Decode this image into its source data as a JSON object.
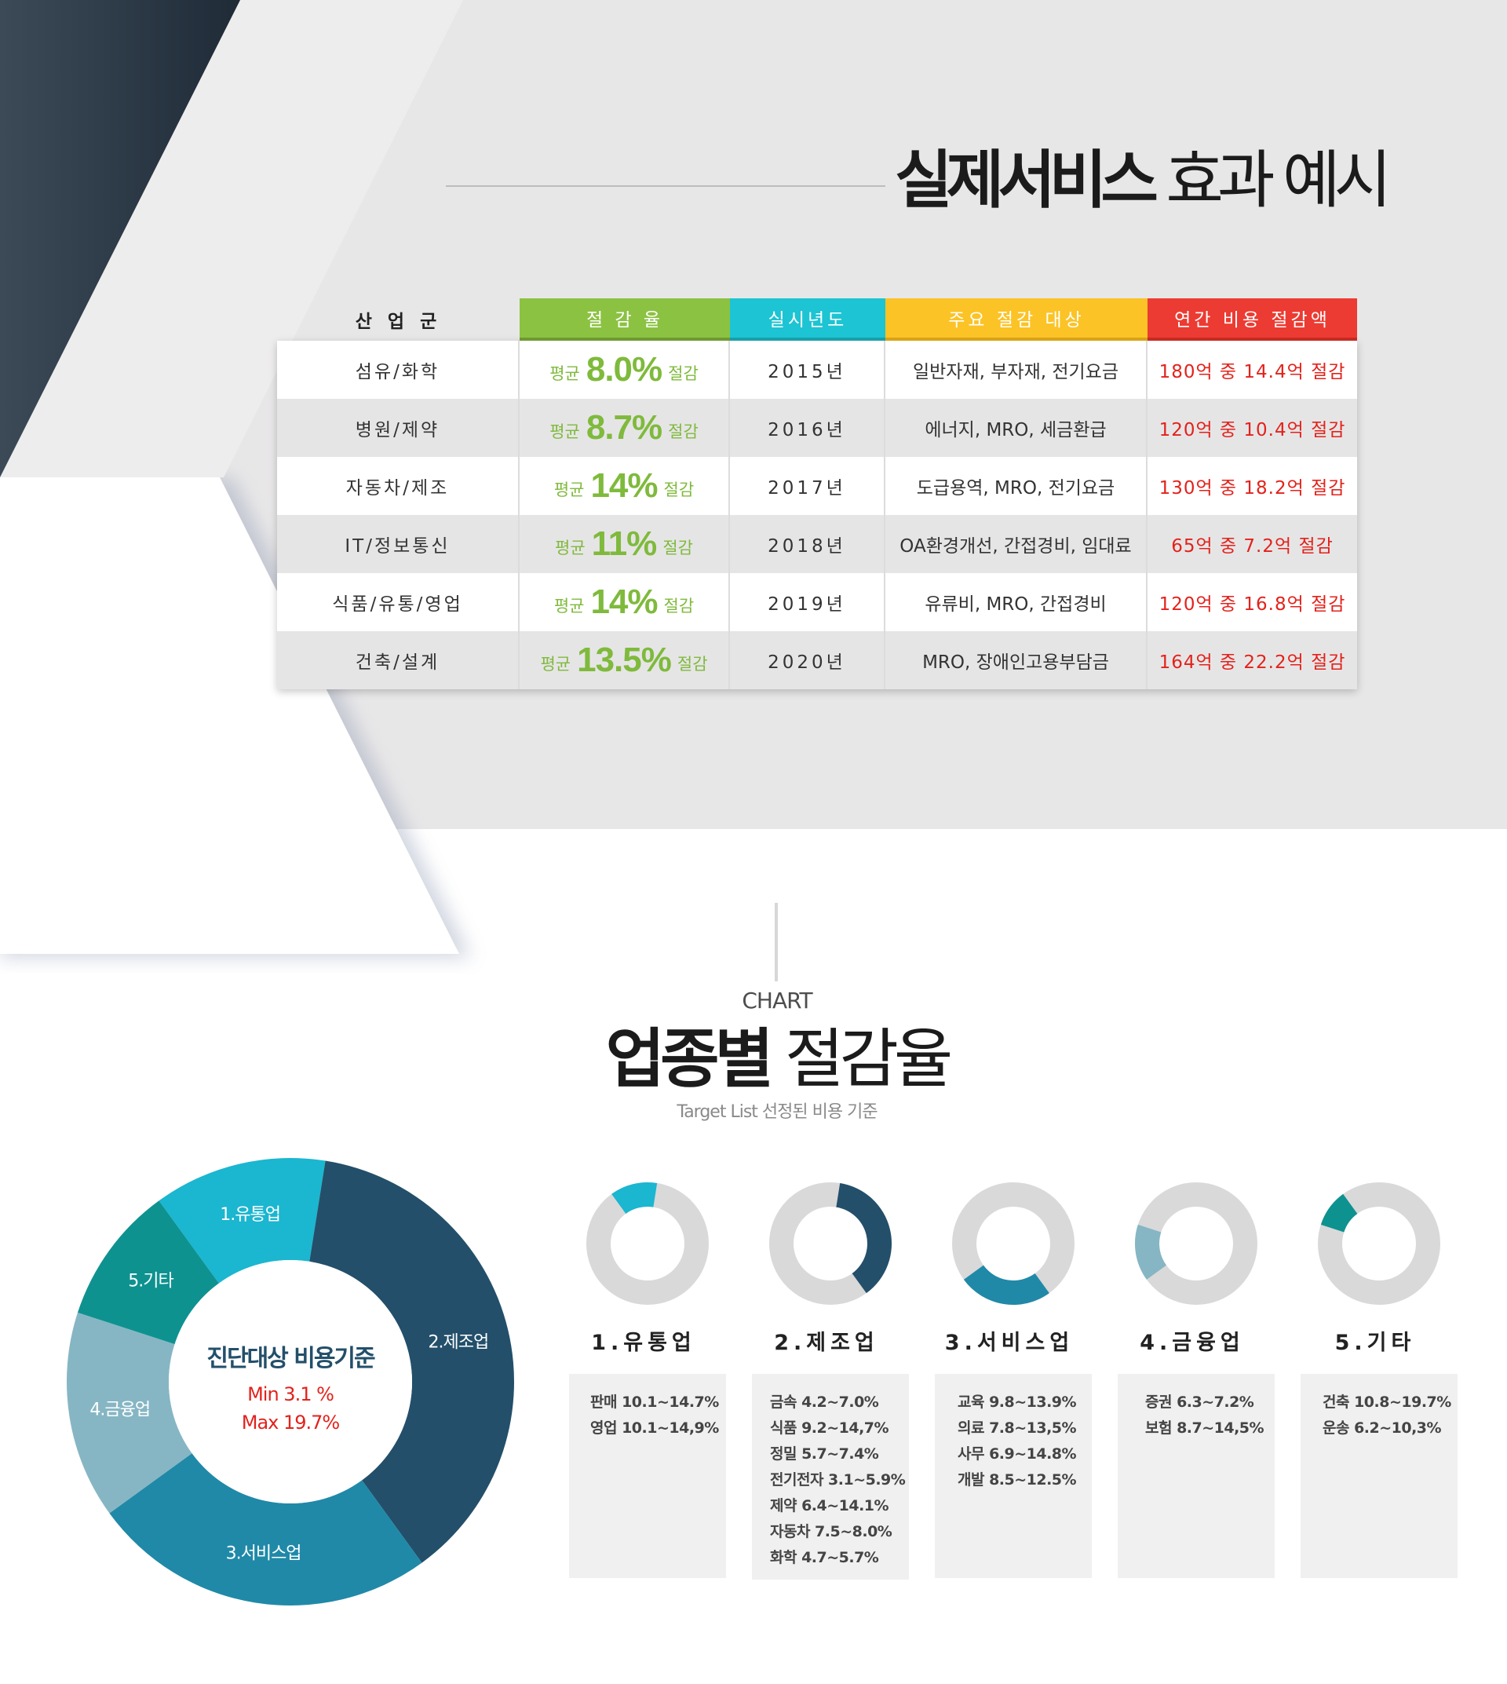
{
  "hero": {
    "title_bold": "실제서비스",
    "title_light": " 효과 예시"
  },
  "table": {
    "headers": [
      "산 업 군",
      "절 감 율",
      "실시년도",
      "주요 절감 대상",
      "연간 비용 절감액"
    ],
    "header_colors": [
      "#8cc242",
      "#1dc4d3",
      "#fbc326",
      "#ec3b32"
    ],
    "rate_prefix": "평균",
    "rate_suffix": "절감",
    "rows": [
      {
        "industry": "섬유/화학",
        "rate": "8.0%",
        "year": "2015년",
        "targets": "일반자재, 부자재, 전기요금",
        "savings": "180억 중 14.4억 절감"
      },
      {
        "industry": "병원/제약",
        "rate": "8.7%",
        "year": "2016년",
        "targets": "에너지, MRO, 세금환급",
        "savings": "120억 중 10.4억 절감"
      },
      {
        "industry": "자동차/제조",
        "rate": "14%",
        "year": "2017년",
        "targets": "도급용역, MRO, 전기요금",
        "savings": "130억 중 18.2억 절감"
      },
      {
        "industry": "IT/정보통신",
        "rate": "11%",
        "year": "2018년",
        "targets": "OA환경개선, 간접경비, 임대료",
        "savings": "65억 중 7.2억 절감"
      },
      {
        "industry": "식품/유통/영업",
        "rate": "14%",
        "year": "2019년",
        "targets": "유류비, MRO, 간접경비",
        "savings": "120억 중 16.8억 절감"
      },
      {
        "industry": "건축/설계",
        "rate": "13.5%",
        "year": "2020년",
        "targets": "MRO, 장애인고용부담금",
        "savings": "164억 중 22.2억 절감"
      }
    ]
  },
  "chart_section": {
    "eyebrow": "CHART",
    "title_bold": "업종별",
    "title_light": " 절감율",
    "subtitle": "Target List 선정된 비용 기준"
  },
  "chart_data": [
    {
      "type": "pie",
      "center_title": "진단대상 비용기준",
      "center_min": "Min 3.1 %",
      "center_max": "Max 19.7%",
      "categories": [
        "1.유통업",
        "2.제조업",
        "3.서비스업",
        "4.금융업",
        "5.기타"
      ],
      "values": [
        12.5,
        37.5,
        25,
        15,
        10
      ],
      "colors": [
        "#1bb6d0",
        "#234f6a",
        "#2089a8",
        "#86b6c4",
        "#0e9290"
      ]
    },
    {
      "type": "pie",
      "series_type": "donut-set",
      "categories": [
        "1.유통업",
        "2.제조업",
        "3.서비스업",
        "4.금융업",
        "5.기타"
      ],
      "values": [
        12.5,
        37.5,
        25,
        15,
        10
      ],
      "colors": [
        "#1bb6d0",
        "#234f6a",
        "#2089a8",
        "#86b6c4",
        "#0e9290"
      ],
      "track_color": "#d9d9d9"
    }
  ],
  "categories": [
    {
      "label": "1.유통업",
      "items": [
        "판매 10.1~14.7%",
        "영업 10.1~14,9%"
      ]
    },
    {
      "label": "2.제조업",
      "items": [
        "금속 4.2~7.0%",
        "식품 9.2~14,7%",
        "정밀 5.7~7.4%",
        "전기전자 3.1~5.9%",
        "제약 6.4~14.1%",
        "자동차 7.5~8.0%",
        "화학 4.7~5.7%"
      ]
    },
    {
      "label": "3.서비스업",
      "items": [
        "교육 9.8~13.9%",
        "의료 7.8~13,5%",
        "사무 6.9~14.8%",
        "개발 8.5~12.5%"
      ]
    },
    {
      "label": "4.금융업",
      "items": [
        "증권 6.3~7.2%",
        "보험 8.7~14,5%"
      ]
    },
    {
      "label": "5.기타",
      "items": [
        "건축 10.8~19.7%",
        "운송 6.2~10,3%"
      ]
    }
  ]
}
